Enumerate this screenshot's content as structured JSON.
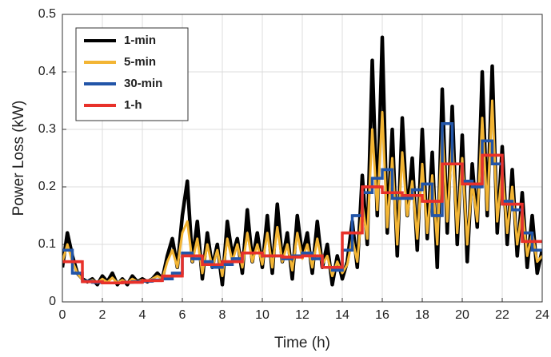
{
  "chart_data": {
    "type": "line",
    "ylabel": "Power Loss (kW)",
    "xlabel": "Time (h)",
    "xlim": [
      0,
      24
    ],
    "ylim": [
      0,
      0.5
    ],
    "xticks": [
      0,
      2,
      4,
      6,
      8,
      10,
      12,
      14,
      16,
      18,
      20,
      22,
      24
    ],
    "yticks": [
      0,
      0.1,
      0.2,
      0.3,
      0.4,
      0.5
    ],
    "grid": true,
    "legend": "upper left",
    "x": [
      0,
      0.25,
      0.5,
      0.75,
      1,
      1.25,
      1.5,
      1.75,
      2,
      2.25,
      2.5,
      2.75,
      3,
      3.25,
      3.5,
      3.75,
      4,
      4.25,
      4.5,
      4.75,
      5,
      5.25,
      5.5,
      5.75,
      6,
      6.25,
      6.5,
      6.75,
      7,
      7.25,
      7.5,
      7.75,
      8,
      8.25,
      8.5,
      8.75,
      9,
      9.25,
      9.5,
      9.75,
      10,
      10.25,
      10.5,
      10.75,
      11,
      11.25,
      11.5,
      11.75,
      12,
      12.25,
      12.5,
      12.75,
      13,
      13.25,
      13.5,
      13.75,
      14,
      14.25,
      14.5,
      14.75,
      15,
      15.25,
      15.5,
      15.75,
      16,
      16.25,
      16.5,
      16.75,
      17,
      17.25,
      17.5,
      17.75,
      18,
      18.25,
      18.5,
      18.75,
      19,
      19.25,
      19.5,
      19.75,
      20,
      20.25,
      20.5,
      20.75,
      21,
      21.25,
      21.5,
      21.75,
      22,
      22.25,
      22.5,
      22.75,
      23,
      23.25,
      23.5,
      23.75,
      24
    ],
    "series": [
      {
        "name": "1-min",
        "color": "#000000",
        "drawstyle": "default",
        "values": [
          0.06,
          0.12,
          0.08,
          0.05,
          0.04,
          0.035,
          0.04,
          0.03,
          0.045,
          0.035,
          0.05,
          0.03,
          0.04,
          0.03,
          0.045,
          0.035,
          0.04,
          0.035,
          0.04,
          0.05,
          0.04,
          0.08,
          0.11,
          0.06,
          0.15,
          0.21,
          0.07,
          0.14,
          0.04,
          0.12,
          0.06,
          0.1,
          0.03,
          0.14,
          0.08,
          0.11,
          0.05,
          0.16,
          0.07,
          0.12,
          0.06,
          0.15,
          0.05,
          0.17,
          0.07,
          0.12,
          0.04,
          0.15,
          0.08,
          0.12,
          0.05,
          0.14,
          0.06,
          0.1,
          0.03,
          0.08,
          0.04,
          0.07,
          0.14,
          0.06,
          0.22,
          0.1,
          0.42,
          0.15,
          0.46,
          0.12,
          0.3,
          0.08,
          0.32,
          0.15,
          0.25,
          0.09,
          0.3,
          0.11,
          0.26,
          0.06,
          0.37,
          0.12,
          0.34,
          0.1,
          0.29,
          0.07,
          0.24,
          0.13,
          0.4,
          0.15,
          0.41,
          0.12,
          0.27,
          0.1,
          0.23,
          0.08,
          0.19,
          0.06,
          0.15,
          0.05,
          0.09
        ]
      },
      {
        "name": "5-min",
        "color": "#f3b534",
        "drawstyle": "default",
        "values": [
          0.07,
          0.1,
          0.07,
          0.05,
          0.038,
          0.035,
          0.038,
          0.033,
          0.04,
          0.034,
          0.042,
          0.033,
          0.038,
          0.033,
          0.04,
          0.035,
          0.038,
          0.036,
          0.04,
          0.045,
          0.04,
          0.07,
          0.09,
          0.06,
          0.12,
          0.14,
          0.07,
          0.11,
          0.05,
          0.1,
          0.06,
          0.09,
          0.045,
          0.11,
          0.07,
          0.1,
          0.06,
          0.12,
          0.07,
          0.1,
          0.065,
          0.12,
          0.06,
          0.13,
          0.07,
          0.1,
          0.055,
          0.12,
          0.075,
          0.1,
          0.06,
          0.11,
          0.065,
          0.08,
          0.045,
          0.07,
          0.05,
          0.065,
          0.11,
          0.07,
          0.17,
          0.11,
          0.3,
          0.16,
          0.33,
          0.13,
          0.25,
          0.1,
          0.26,
          0.15,
          0.21,
          0.11,
          0.24,
          0.12,
          0.22,
          0.1,
          0.3,
          0.14,
          0.28,
          0.12,
          0.25,
          0.1,
          0.21,
          0.14,
          0.32,
          0.16,
          0.35,
          0.14,
          0.23,
          0.12,
          0.2,
          0.1,
          0.16,
          0.08,
          0.12,
          0.07,
          0.08
        ]
      },
      {
        "name": "30-min",
        "color": "#2255a8",
        "drawstyle": "steps-post",
        "x": [
          0,
          0.5,
          1,
          1.5,
          2,
          2.5,
          3,
          3.5,
          4,
          4.5,
          5,
          5.5,
          6,
          6.5,
          7,
          7.5,
          8,
          8.5,
          9,
          9.5,
          10,
          10.5,
          11,
          11.5,
          12,
          12.5,
          13,
          13.5,
          14,
          14.5,
          15,
          15.5,
          16,
          16.5,
          17,
          17.5,
          18,
          18.5,
          19,
          19.5,
          20,
          20.5,
          21,
          21.5,
          22,
          22.5,
          23,
          23.5
        ],
        "values": [
          0.09,
          0.05,
          0.036,
          0.034,
          0.033,
          0.033,
          0.034,
          0.035,
          0.036,
          0.038,
          0.04,
          0.05,
          0.085,
          0.075,
          0.07,
          0.06,
          0.065,
          0.075,
          0.085,
          0.085,
          0.08,
          0.08,
          0.075,
          0.08,
          0.085,
          0.075,
          0.06,
          0.055,
          0.09,
          0.15,
          0.19,
          0.215,
          0.23,
          0.18,
          0.18,
          0.195,
          0.205,
          0.15,
          0.31,
          0.24,
          0.21,
          0.2,
          0.28,
          0.24,
          0.175,
          0.16,
          0.12,
          0.09
        ]
      },
      {
        "name": "1-h",
        "color": "#e8312a",
        "drawstyle": "steps-post",
        "x": [
          0,
          1,
          2,
          3,
          4,
          5,
          6,
          7,
          8,
          9,
          10,
          11,
          12,
          13,
          14,
          15,
          16,
          17,
          18,
          19,
          20,
          21,
          22,
          23
        ],
        "values": [
          0.07,
          0.035,
          0.033,
          0.034,
          0.037,
          0.045,
          0.08,
          0.065,
          0.07,
          0.085,
          0.08,
          0.078,
          0.08,
          0.06,
          0.12,
          0.2,
          0.19,
          0.185,
          0.175,
          0.24,
          0.205,
          0.255,
          0.17,
          0.105
        ]
      }
    ]
  }
}
